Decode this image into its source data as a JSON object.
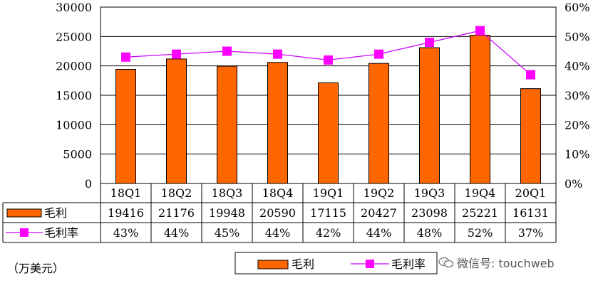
{
  "chart_data": {
    "type": "bar",
    "categories": [
      "18Q1",
      "18Q2",
      "18Q3",
      "18Q4",
      "19Q1",
      "19Q2",
      "19Q3",
      "19Q4",
      "20Q1"
    ],
    "series": [
      {
        "name": "毛利",
        "kind": "bar",
        "axis": "left",
        "values": [
          19416,
          21176,
          19948,
          20590,
          17115,
          20427,
          23098,
          25221,
          16131
        ]
      },
      {
        "name": "毛利率",
        "kind": "line",
        "axis": "right",
        "values": [
          43,
          44,
          45,
          44,
          42,
          44,
          48,
          52,
          37
        ],
        "labels": [
          "43%",
          "44%",
          "45%",
          "44%",
          "42%",
          "44%",
          "48%",
          "52%",
          "37%"
        ]
      }
    ],
    "ylim_left": [
      0,
      30000
    ],
    "yticks_left": [
      "0",
      "5000",
      "10000",
      "15000",
      "20000",
      "25000",
      "30000"
    ],
    "ylim_right": [
      0,
      60
    ],
    "yticks_right": [
      "0%",
      "10%",
      "20%",
      "30%",
      "40%",
      "50%",
      "60%"
    ],
    "grid": true,
    "legend": "bottom",
    "data_table": true
  },
  "colors": {
    "bar_fill": "#FF6600",
    "bar_stroke": "#000000",
    "line": "#CC00FF",
    "marker": "#FF00FF",
    "grid": "#000000"
  },
  "unit_label": "（万美元）",
  "watermark_text": "微信号: touchweb",
  "watermark_icon": "wechat-icon"
}
